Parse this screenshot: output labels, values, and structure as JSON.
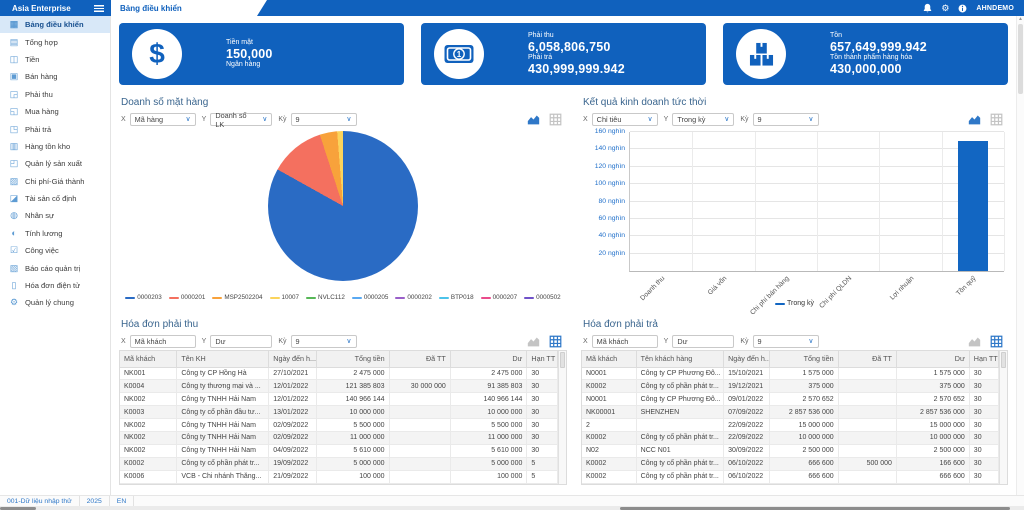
{
  "topbar": {
    "brand": "Asia Enterprise",
    "tab": "Bảng điều khiển",
    "user": "AHNDEMO"
  },
  "sidebar": {
    "items": [
      {
        "id": "bang-dieu-khien",
        "label": "Bảng điều khiển",
        "icon": "dashboard-icon",
        "glyph": "▦",
        "active": true
      },
      {
        "id": "tong-hop",
        "label": "Tổng hợp",
        "icon": "summary-icon",
        "glyph": "▤",
        "active": false
      },
      {
        "id": "tien",
        "label": "Tiền",
        "icon": "cash-icon",
        "glyph": "◫",
        "active": false
      },
      {
        "id": "ban-hang",
        "label": "Bán hàng",
        "icon": "sales-icon",
        "glyph": "▣",
        "active": false
      },
      {
        "id": "phai-thu",
        "label": "Phải thu",
        "icon": "receivable-icon",
        "glyph": "◲",
        "active": false
      },
      {
        "id": "mua-hang",
        "label": "Mua hàng",
        "icon": "purchase-icon",
        "glyph": "◱",
        "active": false
      },
      {
        "id": "phai-tra",
        "label": "Phải trả",
        "icon": "payable-icon",
        "glyph": "◳",
        "active": false
      },
      {
        "id": "hang-ton-kho",
        "label": "Hàng tồn kho",
        "icon": "inventory-icon",
        "glyph": "▥",
        "active": false
      },
      {
        "id": "quan-ly-san-xuat",
        "label": "Quản lý sản xuất",
        "icon": "production-icon",
        "glyph": "◰",
        "active": false
      },
      {
        "id": "chi-phi-gia-thanh",
        "label": "Chi phí-Giá thành",
        "icon": "cost-icon",
        "glyph": "▨",
        "active": false
      },
      {
        "id": "tai-san-co-dinh",
        "label": "Tài sản cố định",
        "icon": "fixed-asset-icon",
        "glyph": "◪",
        "active": false
      },
      {
        "id": "nhan-su",
        "label": "Nhân sự",
        "icon": "hr-icon",
        "glyph": "◍",
        "active": false
      },
      {
        "id": "tinh-luong",
        "label": "Tính lương",
        "icon": "payroll-icon",
        "glyph": "◐",
        "active": false
      },
      {
        "id": "cong-viec",
        "label": "Công việc",
        "icon": "tasks-icon",
        "glyph": "☑",
        "active": false
      },
      {
        "id": "bao-cao-quan-tri",
        "label": "Báo cáo quản trị",
        "icon": "reports-icon",
        "glyph": "▧",
        "active": false
      },
      {
        "id": "hoa-don-dien-tu",
        "label": "Hóa đơn điện tử",
        "icon": "e-invoice-icon",
        "glyph": "▯",
        "active": false
      },
      {
        "id": "quan-ly-chung",
        "label": "Quản lý chung",
        "icon": "admin-gear-icon",
        "glyph": "⚙",
        "active": false
      }
    ]
  },
  "kpi_cards": [
    {
      "id": "cash",
      "icon": "dollar-icon",
      "lines": [
        {
          "type": "label",
          "text": "Tiền mặt"
        },
        {
          "type": "value",
          "text": "150,000"
        },
        {
          "type": "label",
          "text": "Ngân hàng"
        }
      ]
    },
    {
      "id": "receivable-payable",
      "icon": "banknote-icon",
      "lines": [
        {
          "type": "label",
          "text": "Phải thu"
        },
        {
          "type": "value",
          "text": "6,058,806,750"
        },
        {
          "type": "label",
          "text": "Phải trả"
        },
        {
          "type": "value",
          "text": "430,999,999.942"
        }
      ]
    },
    {
      "id": "inventory",
      "icon": "boxes-icon",
      "lines": [
        {
          "type": "label",
          "text": "Tồn"
        },
        {
          "type": "value",
          "text": "657,649,999.942"
        },
        {
          "type": "label",
          "text": "Tồn thành phẩm hàng hóa"
        },
        {
          "type": "value",
          "text": "430,000,000"
        }
      ]
    }
  ],
  "controls_labels": {
    "x": "X",
    "y": "Y",
    "period": "Kỳ"
  },
  "panels": {
    "pie": {
      "title": "Doanh số mặt hàng",
      "x_value": "Mã hàng",
      "y_value": "Doanh số LK",
      "period_value": "9",
      "active_view": "chart"
    },
    "bar": {
      "title": "Kết quả kinh doanh tức thời",
      "x_value": "Chỉ tiêu",
      "y_value": "Trong kỳ",
      "period_value": "9",
      "active_view": "chart"
    },
    "receivable": {
      "title": "Hóa đơn phải thu",
      "x_value": "Mã khách",
      "y_value": "Dư",
      "period_value": "9",
      "active_view": "grid",
      "columns": [
        "Mã khách",
        "Tên KH",
        "Ngày đến h...",
        "Tổng tiền",
        "Đã TT",
        "Dư",
        "Hạn TT"
      ],
      "rows": [
        [
          "NK001",
          "Công ty CP Hồng Hà",
          "27/10/2021",
          "2 475 000",
          "",
          "2 475 000",
          "30"
        ],
        [
          "K0004",
          "Công ty thương mại và ...",
          "12/01/2022",
          "121 385 803",
          "30 000 000",
          "91 385 803",
          "30"
        ],
        [
          "NK002",
          "Công ty TNHH Hải Nam",
          "12/01/2022",
          "140 966 144",
          "",
          "140 966 144",
          "30"
        ],
        [
          "K0003",
          "Công ty cổ phần đầu tư...",
          "13/01/2022",
          "10 000 000",
          "",
          "10 000 000",
          "30"
        ],
        [
          "NK002",
          "Công ty TNHH Hải Nam",
          "02/09/2022",
          "5 500 000",
          "",
          "5 500 000",
          "30"
        ],
        [
          "NK002",
          "Công ty TNHH Hải Nam",
          "02/09/2022",
          "11 000 000",
          "",
          "11 000 000",
          "30"
        ],
        [
          "NK002",
          "Công ty TNHH Hải Nam",
          "04/09/2022",
          "5 610 000",
          "",
          "5 610 000",
          "30"
        ],
        [
          "K0002",
          "Công ty cổ phần phát tr...",
          "19/09/2022",
          "5 000 000",
          "",
          "5 000 000",
          "5"
        ],
        [
          "K0006",
          "VCB - Chi nhánh Thăng...",
          "21/09/2022",
          "100 000",
          "",
          "100 000",
          "5"
        ]
      ]
    },
    "payable": {
      "title": "Hóa đơn phải trả",
      "x_value": "Mã khách",
      "y_value": "Dư",
      "period_value": "9",
      "active_view": "grid",
      "columns": [
        "Mã khách",
        "Tên khách hàng",
        "Ngày đến h...",
        "Tổng tiền",
        "Đã TT",
        "Dư",
        "Hạn TT"
      ],
      "rows": [
        [
          "N0001",
          "Công ty CP Phương Đô...",
          "15/10/2021",
          "1 575 000",
          "",
          "1 575 000",
          "30"
        ],
        [
          "K0002",
          "Công ty cổ phần phát tr...",
          "19/12/2021",
          "375 000",
          "",
          "375 000",
          "30"
        ],
        [
          "N0001",
          "Công ty CP Phương Đô...",
          "09/01/2022",
          "2 570 652",
          "",
          "2 570 652",
          "30"
        ],
        [
          "NK00001",
          "SHENZHEN",
          "07/09/2022",
          "2 857 536 000",
          "",
          "2 857 536 000",
          "30"
        ],
        [
          "2",
          "",
          "22/09/2022",
          "15 000 000",
          "",
          "15 000 000",
          "30"
        ],
        [
          "K0002",
          "Công ty cổ phần phát tr...",
          "22/09/2022",
          "10 000 000",
          "",
          "10 000 000",
          "30"
        ],
        [
          "N02",
          "NCC N01",
          "30/09/2022",
          "2 500 000",
          "",
          "2 500 000",
          "30"
        ],
        [
          "K0002",
          "Công ty cổ phần phát tr...",
          "06/10/2022",
          "666 600",
          "500 000",
          "166 600",
          "30"
        ],
        [
          "K0002",
          "Công ty cổ phần phát tr...",
          "06/10/2022",
          "666 600",
          "",
          "666 600",
          "30"
        ]
      ]
    }
  },
  "chart_data": [
    {
      "type": "pie",
      "title": "Doanh số mặt hàng",
      "labels": [
        "0000203",
        "0000201",
        "MSP2502204",
        "10007",
        "NVLC112",
        "0000205",
        "0000202",
        "BTP018",
        "0000207",
        "0000502"
      ],
      "values_percent": [
        83.1,
        11.9,
        3.75,
        1.25,
        0,
        0,
        0,
        0,
        0,
        0
      ],
      "colors": [
        "#2a6bc4",
        "#f4705f",
        "#f8a23b",
        "#fbd45c",
        "#57b757",
        "#59a9f2",
        "#9a5fc9",
        "#4cc3ea",
        "#ea4b8b",
        "#7052c9"
      ],
      "legend_position": "bottom"
    },
    {
      "type": "bar",
      "title": "Kết quả kinh doanh tức thời",
      "categories": [
        "Doanh thu",
        "Giá vốn",
        "Chi phí bán hàng",
        "Chi phí QLDN",
        "Lợi nhuận",
        "Tồn quỹ"
      ],
      "series": [
        {
          "name": "Trong kỳ",
          "color": "#1266c2",
          "values": [
            0,
            0,
            0,
            0,
            0,
            150000
          ]
        }
      ],
      "ylim": [
        0,
        160000
      ],
      "ytick_step": 20000,
      "ytick_labels": [
        "20 nghìn",
        "40 nghìn",
        "60 nghìn",
        "80 nghìn",
        "100 nghìn",
        "120 nghìn",
        "140 nghìn",
        "160 nghìn"
      ],
      "grid": true,
      "legend_position": "bottom"
    }
  ],
  "statusbar": {
    "items": [
      "001-Dữ liệu nhập thử",
      "2025",
      "EN"
    ]
  },
  "accent_color": "#1061bd"
}
